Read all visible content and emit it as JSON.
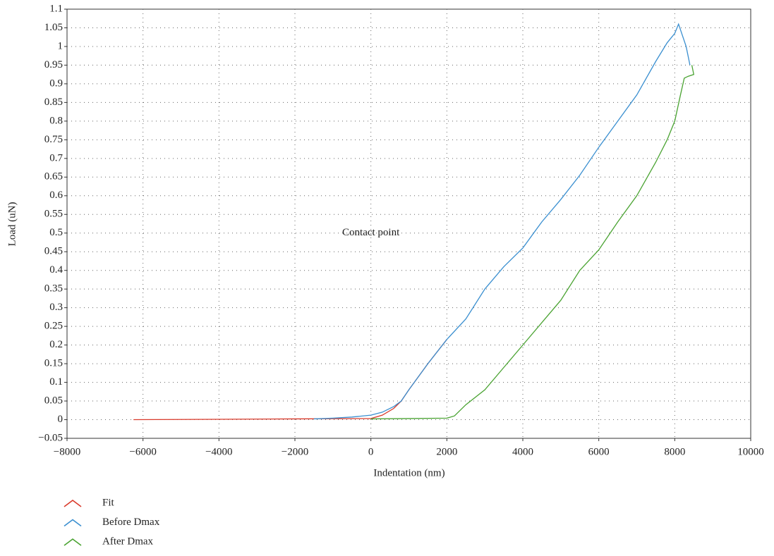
{
  "chart_data": {
    "type": "line",
    "x_label": "Indentation (nm)",
    "y_label": "Load (uN)",
    "annotation": "Contact point",
    "xlim": [
      -8000,
      10000
    ],
    "xticks": [
      {
        "value": -8000,
        "label": "−8000"
      },
      {
        "value": -6000,
        "label": "−6000"
      },
      {
        "value": -4000,
        "label": "−4000"
      },
      {
        "value": -2000,
        "label": "−2000"
      },
      0,
      2000,
      4000,
      6000,
      8000,
      10000
    ],
    "ylim": [
      -0.05,
      1.1
    ],
    "yticks": [
      {
        "value": -0.05,
        "label": "−0.05"
      },
      0,
      0.05,
      0.1,
      0.15,
      0.2,
      0.25,
      0.3,
      0.35,
      0.4,
      0.45,
      0.5,
      0.55,
      0.6,
      0.65,
      0.7,
      0.75,
      0.8,
      0.85,
      0.9,
      0.95,
      1,
      1.05,
      1.1
    ],
    "grid": true,
    "series": [
      {
        "name": "Fit",
        "color": "#d93a2b",
        "x": [
          -6250,
          -4000,
          -2000,
          0,
          300,
          600,
          800,
          1000,
          1500,
          2000
        ],
        "values": [
          0,
          0.001,
          0.002,
          0.003,
          0.012,
          0.03,
          0.05,
          0.08,
          0.15,
          0.215
        ]
      },
      {
        "name": "Before Dmax",
        "color": "#3a8fd0",
        "x": [
          -1500,
          -1000,
          -500,
          0,
          300,
          600,
          800,
          1000,
          1500,
          2000,
          2500,
          3000,
          3500,
          4000,
          4500,
          5000,
          5500,
          6000,
          6500,
          7000,
          7500,
          7800,
          8000,
          8100,
          8200,
          8300,
          8400
        ],
        "values": [
          0.002,
          0.004,
          0.007,
          0.012,
          0.02,
          0.035,
          0.05,
          0.08,
          0.15,
          0.215,
          0.27,
          0.35,
          0.41,
          0.46,
          0.53,
          0.59,
          0.655,
          0.73,
          0.8,
          0.87,
          0.96,
          1.01,
          1.035,
          1.06,
          1.03,
          1.0,
          0.95
        ]
      },
      {
        "name": "After Dmax",
        "color": "#4aa332",
        "x": [
          0,
          1000,
          2000,
          2200,
          2500,
          3000,
          3500,
          4000,
          4500,
          5000,
          5500,
          6000,
          6500,
          7000,
          7500,
          7800,
          8000,
          8150,
          8250,
          8350,
          8500,
          8450
        ],
        "values": [
          0.002,
          0.003,
          0.004,
          0.01,
          0.04,
          0.08,
          0.14,
          0.2,
          0.26,
          0.32,
          0.4,
          0.455,
          0.53,
          0.6,
          0.69,
          0.75,
          0.8,
          0.87,
          0.915,
          0.92,
          0.925,
          0.95
        ]
      }
    ]
  }
}
